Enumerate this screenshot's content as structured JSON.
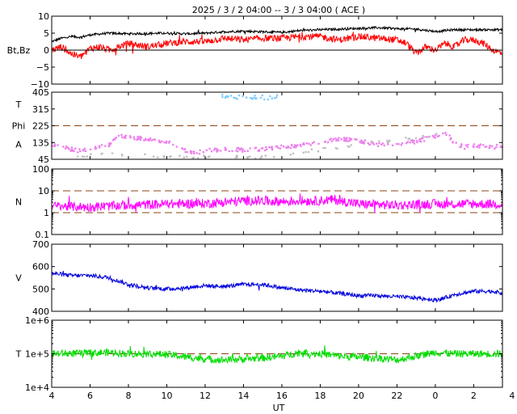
{
  "chart_data": {
    "title": "2025 /  3 /  2   04:00 --  3 /  3   04:00 ( ACE )",
    "xlabel": "UT",
    "x_range_hours": [
      4,
      27.5
    ],
    "x_ticks": [
      {
        "hour": 4,
        "label": "4"
      },
      {
        "hour": 6,
        "label": "6"
      },
      {
        "hour": 8,
        "label": "8"
      },
      {
        "hour": 10,
        "label": "10"
      },
      {
        "hour": 12,
        "label": "12"
      },
      {
        "hour": 14,
        "label": "14"
      },
      {
        "hour": 16,
        "label": "16"
      },
      {
        "hour": 18,
        "label": "18"
      },
      {
        "hour": 20,
        "label": "20"
      },
      {
        "hour": 22,
        "label": "22"
      },
      {
        "hour": 24,
        "label": "0"
      },
      {
        "hour": 26,
        "label": "2"
      },
      {
        "hour": 28,
        "label": "4"
      }
    ],
    "panels": [
      {
        "id": "bt-bz",
        "type": "line",
        "ylabel": "Bt,Bz",
        "ylim": [
          -10,
          10
        ],
        "scale": "linear",
        "ticks": [
          {
            "v": 10,
            "label": "10"
          },
          {
            "v": 5,
            "label": "5"
          },
          {
            "v": 0,
            "label": "0"
          },
          {
            "v": -5,
            "label": "−5"
          },
          {
            "v": -10,
            "label": "−10"
          }
        ],
        "zero_line": 0,
        "series": [
          {
            "color": "#000000",
            "noise": 0.35,
            "points": [
              [
                4,
                2.5
              ],
              [
                4.5,
                3.5
              ],
              [
                5,
                4
              ],
              [
                5.5,
                3.8
              ],
              [
                6,
                4.5
              ],
              [
                7,
                5
              ],
              [
                8,
                4.8
              ],
              [
                9,
                4.9
              ],
              [
                10,
                5
              ],
              [
                11,
                4.8
              ],
              [
                12,
                5
              ],
              [
                13,
                5.4
              ],
              [
                14,
                5.6
              ],
              [
                15,
                5.4
              ],
              [
                16,
                5.2
              ],
              [
                17,
                5.8
              ],
              [
                18,
                6
              ],
              [
                19,
                6.2
              ],
              [
                20,
                6.4
              ],
              [
                21,
                6.6
              ],
              [
                22,
                6.3
              ],
              [
                23,
                6.2
              ],
              [
                24,
                5.5
              ],
              [
                25,
                6
              ],
              [
                26,
                6
              ],
              [
                27,
                6
              ],
              [
                27.5,
                6
              ]
            ]
          },
          {
            "color": "#ff0000",
            "noise": 1.0,
            "points": [
              [
                4,
                0
              ],
              [
                4.5,
                1
              ],
              [
                5,
                -1
              ],
              [
                5.5,
                -2
              ],
              [
                6,
                0.5
              ],
              [
                6.5,
                1
              ],
              [
                7,
                0
              ],
              [
                8,
                2
              ],
              [
                9,
                1
              ],
              [
                10,
                2
              ],
              [
                11,
                2.5
              ],
              [
                12,
                2.5
              ],
              [
                13,
                3.5
              ],
              [
                14,
                3
              ],
              [
                15,
                3.5
              ],
              [
                16,
                3.5
              ],
              [
                17,
                4
              ],
              [
                18,
                4
              ],
              [
                19,
                3
              ],
              [
                20,
                4
              ],
              [
                21,
                3.5
              ],
              [
                22,
                3
              ],
              [
                22.5,
                2
              ],
              [
                23,
                -1
              ],
              [
                23.5,
                1
              ],
              [
                24,
                0
              ],
              [
                24.5,
                2
              ],
              [
                25,
                1
              ],
              [
                25.5,
                3
              ],
              [
                26,
                3
              ],
              [
                26.5,
                2
              ],
              [
                27,
                0
              ],
              [
                27.5,
                -1
              ]
            ]
          }
        ]
      },
      {
        "id": "phi",
        "type": "scatter",
        "ylabel_lines": [
          "T",
          "Phi",
          "A"
        ],
        "ylim": [
          45,
          405
        ],
        "scale": "linear",
        "ticks": [
          {
            "v": 405,
            "label": "405"
          },
          {
            "v": 315,
            "label": "315"
          },
          {
            "v": 225,
            "label": "225"
          },
          {
            "v": 135,
            "label": "135"
          },
          {
            "v": 45,
            "label": "45"
          }
        ],
        "ref_lines": [
          225,
          45
        ],
        "series": [
          {
            "color": "#ee82ee",
            "noise": 10,
            "points": [
              [
                4,
                125
              ],
              [
                5,
                100
              ],
              [
                5.5,
                90
              ],
              [
                6,
                100
              ],
              [
                6.5,
                110
              ],
              [
                7,
                120
              ],
              [
                7.5,
                170
              ],
              [
                8,
                160
              ],
              [
                9,
                155
              ],
              [
                10,
                140
              ],
              [
                10.5,
                120
              ],
              [
                11,
                90
              ],
              [
                11.5,
                80
              ],
              [
                12,
                90
              ],
              [
                13,
                100
              ],
              [
                14,
                95
              ],
              [
                15,
                100
              ],
              [
                16,
                110
              ],
              [
                17,
                120
              ],
              [
                18,
                135
              ],
              [
                19,
                155
              ],
              [
                20,
                145
              ],
              [
                21,
                125
              ],
              [
                22,
                130
              ],
              [
                23,
                140
              ],
              [
                24,
                170
              ],
              [
                24.5,
                190
              ],
              [
                25,
                135
              ],
              [
                25.5,
                110
              ],
              [
                26,
                120
              ],
              [
                27,
                110
              ],
              [
                27.5,
                120
              ]
            ]
          },
          {
            "color": "#c0c0c0",
            "noise": 8,
            "points": [
              [
                5.3,
                60
              ],
              [
                5.8,
                65
              ],
              [
                6.5,
                75
              ],
              [
                11.5,
                55
              ],
              [
                12.2,
                60
              ],
              [
                13.5,
                60
              ],
              [
                14.5,
                55
              ],
              [
                15.3,
                60
              ],
              [
                16,
                70
              ],
              [
                24.3,
                180
              ],
              [
                25.2,
                170
              ]
            ]
          },
          {
            "color": "#80ccff",
            "noise": 12,
            "points": [
              [
                12.8,
                385
              ],
              [
                13.3,
                375
              ],
              [
                14.8,
                380
              ],
              [
                15.3,
                375
              ],
              [
                15.8,
                380
              ]
            ]
          }
        ]
      },
      {
        "id": "density",
        "type": "line",
        "ylabel": "N",
        "ylim": [
          0.1,
          100
        ],
        "scale": "log",
        "ticks": [
          {
            "v": 100,
            "label": "100"
          },
          {
            "v": 10,
            "label": "10"
          },
          {
            "v": 1,
            "label": "1"
          },
          {
            "v": 0.1,
            "label": "0.1"
          }
        ],
        "ref_lines": [
          10,
          1
        ],
        "series": [
          {
            "color": "#ff00ff",
            "noise": 0.22,
            "points": [
              [
                4,
                2
              ],
              [
                6,
                1.8
              ],
              [
                8,
                2.2
              ],
              [
                10,
                2.5
              ],
              [
                12,
                2.6
              ],
              [
                13,
                3
              ],
              [
                14,
                3.5
              ],
              [
                15,
                3.5
              ],
              [
                16,
                3.2
              ],
              [
                17,
                3.5
              ],
              [
                18,
                3.5
              ],
              [
                18.7,
                4
              ],
              [
                19,
                3.5
              ],
              [
                20,
                2.5
              ],
              [
                22,
                2.2
              ],
              [
                24,
                2.5
              ],
              [
                26,
                2.5
              ],
              [
                27.5,
                2.5
              ]
            ]
          }
        ]
      },
      {
        "id": "speed",
        "type": "line",
        "ylabel": "V",
        "ylim": [
          400,
          700
        ],
        "scale": "linear",
        "ticks": [
          {
            "v": 700,
            "label": "700"
          },
          {
            "v": 600,
            "label": "600"
          },
          {
            "v": 500,
            "label": "500"
          },
          {
            "v": 400,
            "label": "400"
          }
        ],
        "series": [
          {
            "color": "#0000dd",
            "noise": 9,
            "points": [
              [
                4,
                570
              ],
              [
                5,
                560
              ],
              [
                6,
                560
              ],
              [
                7,
                550
              ],
              [
                8,
                520
              ],
              [
                9,
                505
              ],
              [
                10,
                500
              ],
              [
                11,
                505
              ],
              [
                12,
                515
              ],
              [
                13,
                510
              ],
              [
                14,
                520
              ],
              [
                15,
                520
              ],
              [
                16,
                505
              ],
              [
                17,
                495
              ],
              [
                18,
                490
              ],
              [
                19,
                480
              ],
              [
                20,
                470
              ],
              [
                21,
                470
              ],
              [
                22,
                465
              ],
              [
                23,
                460
              ],
              [
                24,
                450
              ],
              [
                24.5,
                460
              ],
              [
                25,
                475
              ],
              [
                26,
                490
              ],
              [
                27,
                490
              ],
              [
                27.5,
                480
              ]
            ]
          }
        ]
      },
      {
        "id": "temperature",
        "type": "line",
        "ylabel": "T",
        "ylim": [
          10000,
          1000000
        ],
        "scale": "log",
        "ticks": [
          {
            "v": 1000000,
            "label": "1e+6"
          },
          {
            "v": 100000,
            "label": "1e+5"
          },
          {
            "v": 10000,
            "label": "1e+4"
          }
        ],
        "ref_lines": [
          100000
        ],
        "series": [
          {
            "color": "#00dd00",
            "noise": 0.11,
            "points": [
              [
                4,
                100000
              ],
              [
                6,
                105000
              ],
              [
                7,
                110000
              ],
              [
                8,
                100000
              ],
              [
                9,
                100000
              ],
              [
                10,
                95000
              ],
              [
                11,
                80000
              ],
              [
                12,
                70000
              ],
              [
                13,
                65000
              ],
              [
                14,
                70000
              ],
              [
                15,
                75000
              ],
              [
                16,
                85000
              ],
              [
                17,
                110000
              ],
              [
                18,
                100000
              ],
              [
                19,
                85000
              ],
              [
                20,
                80000
              ],
              [
                21,
                75000
              ],
              [
                22,
                65000
              ],
              [
                23,
                85000
              ],
              [
                24,
                110000
              ],
              [
                25,
                100000
              ],
              [
                26,
                100000
              ],
              [
                27,
                100000
              ],
              [
                27.5,
                100000
              ]
            ]
          }
        ]
      }
    ]
  }
}
